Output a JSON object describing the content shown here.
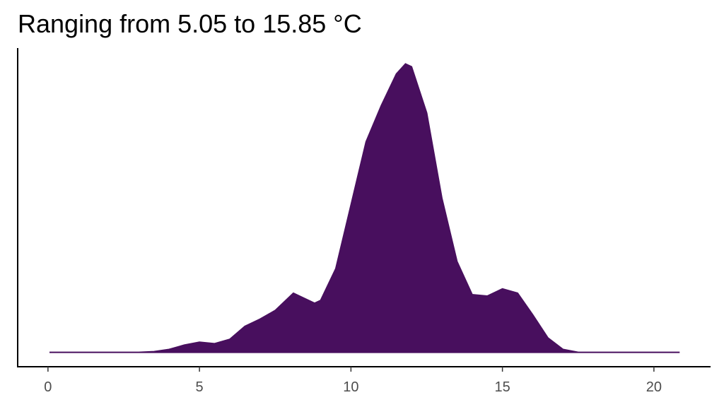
{
  "chart_data": {
    "type": "density",
    "title": "Ranging from 5.05 to 15.85 °C",
    "x": [
      0.05,
      1,
      2,
      3,
      3.5,
      4,
      4.5,
      5,
      5.5,
      6,
      6.5,
      7,
      7.5,
      8.1,
      8.8,
      9,
      9.5,
      10,
      10.5,
      11,
      11.5,
      11.8,
      12,
      12.5,
      13,
      13.5,
      14,
      14.5,
      15,
      15.5,
      16,
      16.5,
      17,
      17.5,
      18,
      19,
      20,
      20.85
    ],
    "values": [
      0,
      0,
      0,
      0,
      0.0005,
      0.002,
      0.005,
      0.007,
      0.006,
      0.009,
      0.018,
      0.023,
      0.029,
      0.041,
      0.034,
      0.036,
      0.058,
      0.102,
      0.146,
      0.171,
      0.193,
      0.2,
      0.198,
      0.166,
      0.107,
      0.063,
      0.04,
      0.039,
      0.044,
      0.041,
      0.026,
      0.01,
      0.002,
      0,
      0,
      0,
      0,
      0
    ],
    "color": "#480f5e",
    "xlim": [
      -1,
      21.87
    ],
    "xticks": [
      0,
      5,
      10,
      15,
      20
    ],
    "ylim": [
      -0.01,
      0.211
    ]
  }
}
